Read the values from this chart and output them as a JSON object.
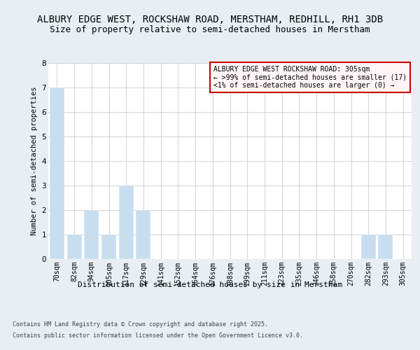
{
  "title1": "ALBURY EDGE WEST, ROCKSHAW ROAD, MERSTHAM, REDHILL, RH1 3DB",
  "title2": "Size of property relative to semi-detached houses in Merstham",
  "xlabel": "Distribution of semi-detached houses by size in Merstham",
  "ylabel": "Number of semi-detached properties",
  "categories": [
    "70sqm",
    "82sqm",
    "94sqm",
    "105sqm",
    "117sqm",
    "129sqm",
    "141sqm",
    "152sqm",
    "164sqm",
    "176sqm",
    "188sqm",
    "199sqm",
    "211sqm",
    "223sqm",
    "235sqm",
    "246sqm",
    "258sqm",
    "270sqm",
    "282sqm",
    "293sqm",
    "305sqm"
  ],
  "values": [
    7,
    1,
    2,
    1,
    3,
    2,
    0,
    0,
    0,
    0,
    0,
    0,
    0,
    0,
    0,
    0,
    0,
    0,
    1,
    1,
    0
  ],
  "bar_color": "#c8ddf0",
  "ylim": [
    0,
    8
  ],
  "yticks": [
    0,
    1,
    2,
    3,
    4,
    5,
    6,
    7,
    8
  ],
  "annotation_title": "ALBURY EDGE WEST ROCKSHAW ROAD: 305sqm",
  "annotation_line2": "← >99% of semi-detached houses are smaller (17)",
  "annotation_line3": "<1% of semi-detached houses are larger (0) →",
  "footer1": "Contains HM Land Registry data © Crown copyright and database right 2025.",
  "footer2": "Contains public sector information licensed under the Open Government Licence v3.0.",
  "bg_color": "#e8eef4",
  "plot_bg_color": "#ffffff",
  "grid_color": "#cccccc",
  "title1_fontsize": 10,
  "title2_fontsize": 9,
  "xlabel_fontsize": 8,
  "ylabel_fontsize": 7.5,
  "tick_fontsize": 7,
  "footer_fontsize": 6,
  "ann_fontsize": 7
}
